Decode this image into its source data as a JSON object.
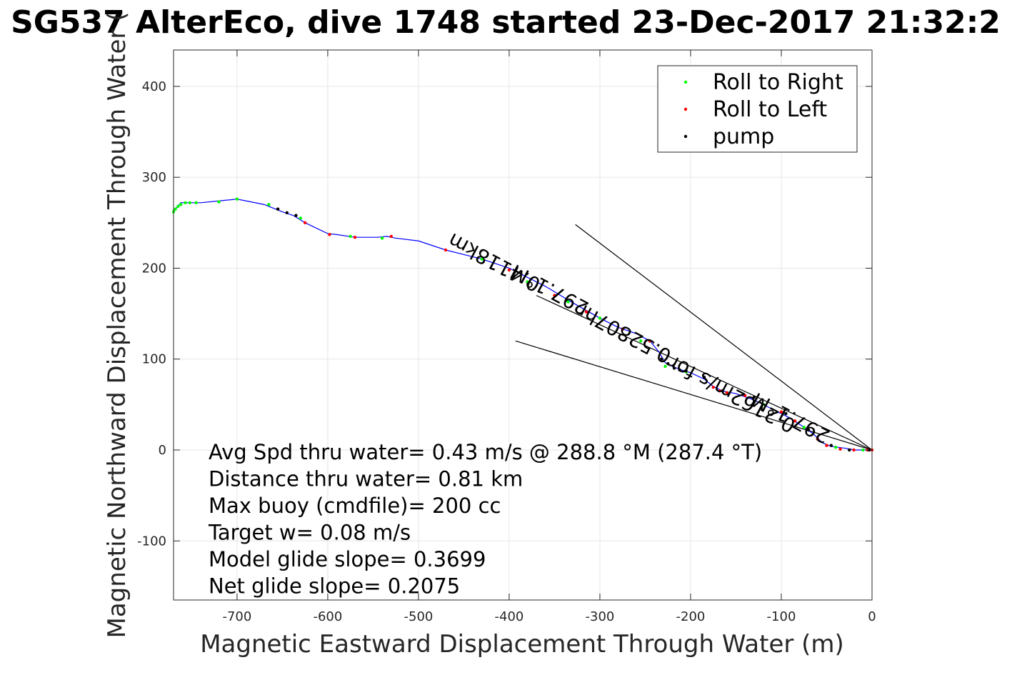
{
  "chart_data": {
    "type": "line",
    "title": "SG537 AlterEco, dive 1748 started 23-Dec-2017 21:32:2",
    "xlabel": "Magnetic Eastward Displacement Through Water (m)",
    "ylabel": "Magnetic Northward Displacement Through Water (",
    "xlim": [
      -770,
      0
    ],
    "ylim": [
      -165,
      440
    ],
    "xticks": [
      -700,
      -600,
      -500,
      -400,
      -300,
      -200,
      -100,
      0
    ],
    "yticks": [
      -100,
      0,
      100,
      200,
      300,
      400
    ],
    "grid": true,
    "legend": {
      "placement": "top-right",
      "entries": [
        {
          "label": "Roll to Right",
          "color": "#00ff00"
        },
        {
          "label": "Roll to Left",
          "color": "#ff0000"
        },
        {
          "label": "pump",
          "color": "#000000"
        }
      ]
    },
    "track_color": "#0000ff",
    "track": {
      "x": [
        0,
        -8,
        -18,
        -30,
        -45,
        -55,
        -65,
        -75,
        -90,
        -110,
        -130,
        -150,
        -165,
        -175,
        -185,
        -200,
        -210,
        -220,
        -228,
        -235,
        -245,
        -260,
        -280,
        -300,
        -330,
        -360,
        -400,
        -430,
        -470,
        -500,
        -525,
        -535,
        -545,
        -570,
        -590,
        -600,
        -625,
        -638,
        -650,
        -660,
        -670,
        -690,
        -700,
        -720,
        -740,
        -755,
        -762,
        -768,
        -770
      ],
      "y": [
        0,
        0,
        0,
        2,
        4,
        8,
        18,
        25,
        35,
        45,
        55,
        62,
        65,
        70,
        78,
        85,
        88,
        92,
        96,
        108,
        120,
        128,
        135,
        145,
        162,
        180,
        200,
        210,
        220,
        230,
        233,
        235,
        234,
        234,
        237,
        238,
        250,
        258,
        262,
        266,
        270,
        274,
        276,
        274,
        272,
        272,
        272,
        265,
        262
      ]
    },
    "roll_right": {
      "x": [
        -10,
        -40,
        -75,
        -120,
        -160,
        -205,
        -228,
        -255,
        -300,
        -335,
        -380,
        -430,
        -540,
        -575,
        -630,
        -665,
        -700,
        -720,
        -745,
        -752,
        -757,
        -762,
        -765,
        -768,
        -770
      ],
      "y": [
        0,
        3,
        25,
        50,
        63,
        86,
        92,
        120,
        145,
        163,
        185,
        210,
        233,
        235,
        255,
        270,
        276,
        273,
        272,
        272,
        272,
        270,
        268,
        265,
        262
      ]
    },
    "roll_left": {
      "x": [
        0,
        -5,
        -20,
        -35,
        -50,
        -60,
        -85,
        -100,
        -140,
        -160,
        -168,
        -175,
        -245,
        -275,
        -315,
        -350,
        -400,
        -470,
        -530,
        -570,
        -598,
        -625,
        -655
      ],
      "y": [
        0,
        0,
        0,
        1,
        5,
        12,
        32,
        42,
        60,
        63,
        65,
        69,
        120,
        133,
        152,
        170,
        198,
        220,
        235,
        234,
        237,
        250,
        265
      ]
    },
    "pump": {
      "x": [
        -3,
        -25,
        -45,
        -70,
        -95,
        -130,
        -165,
        -185,
        -205,
        -212,
        -218,
        -225,
        -232,
        -645,
        -635,
        -655
      ],
      "y": [
        0,
        0,
        5,
        22,
        40,
        58,
        65,
        80,
        87,
        88,
        90,
        95,
        100,
        261,
        258,
        265
      ]
    },
    "slope_lines": [
      {
        "x": [
          0,
          -327
        ],
        "y": [
          0,
          248
        ]
      },
      {
        "x": [
          0,
          -393
        ],
        "y": [
          0,
          120
        ]
      },
      {
        "x": [
          0,
          -370
        ],
        "y": [
          0,
          170
        ]
      }
    ],
    "track_annotations": [
      {
        "text": "0.4118km",
        "x": -413,
        "y": 213,
        "angle": 208
      },
      {
        "text": "297.1°M",
        "x": -352,
        "y": 183,
        "angle": 208
      },
      {
        "text": "0.52807hr",
        "x": -270,
        "y": 135,
        "angle": 208
      },
      {
        "text": "0.2162m/s for",
        "x": -151,
        "y": 68,
        "angle": 208
      },
      {
        "text": "297.1°M",
        "x": -86,
        "y": 42,
        "angle": 208
      }
    ],
    "annotations": [
      "Avg Spd thru water=  0.43 m/s @ 288.8 °M (287.4 °T)",
      "Distance thru water=  0.81 km",
      "Max buoy (cmdfile)= 200 cc",
      "Target w= 0.08 m/s",
      "Model glide slope= 0.3699",
      "Net glide slope= 0.2075"
    ]
  }
}
